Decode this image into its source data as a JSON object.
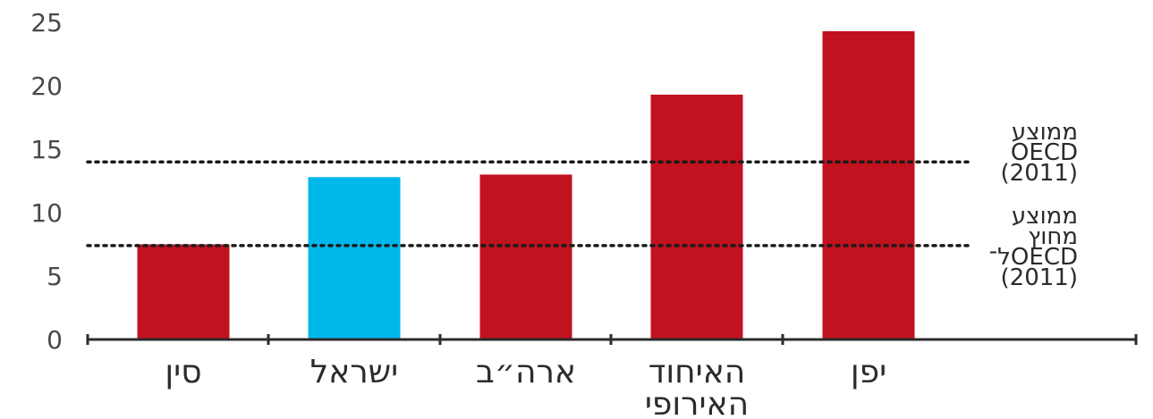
{
  "chart_data": {
    "type": "bar",
    "categories": [
      [
        "סין"
      ],
      [
        "ישראל"
      ],
      [
        "ארה״ב"
      ],
      [
        "האיחוד",
        "האירופי"
      ],
      [
        "יפן"
      ]
    ],
    "values": [
      7.5,
      12.8,
      13.0,
      19.3,
      24.3
    ],
    "bar_colors": [
      "#c1121f",
      "#00b7ea",
      "#c1121f",
      "#c1121f",
      "#c1121f"
    ],
    "ylim": [
      0,
      25
    ],
    "yticks": [
      "0",
      "5",
      "10",
      "15",
      "20",
      "25"
    ],
    "grid": false,
    "reference_lines": [
      {
        "value": 14.0,
        "label": [
          "ממוצע",
          "OECD",
          "(2011)"
        ]
      },
      {
        "value": 7.4,
        "label": [
          "ממוצע",
          "מחוץ",
          "ל־OECD",
          "(2011)"
        ]
      }
    ],
    "xlabel": "",
    "ylabel": ""
  }
}
